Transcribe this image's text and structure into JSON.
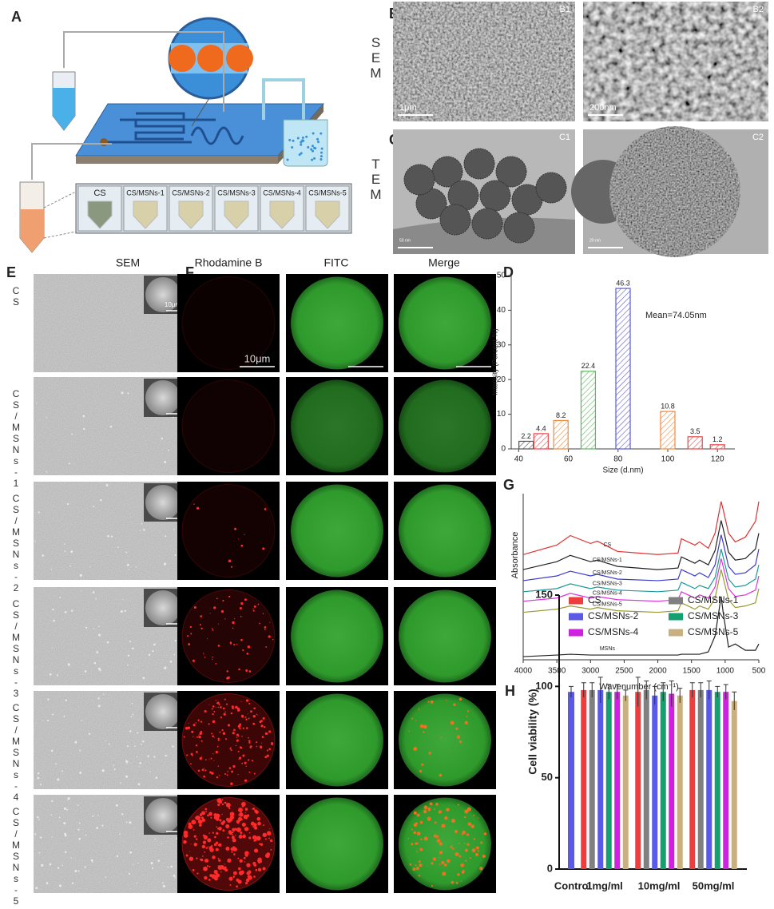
{
  "panel_labels": {
    "a": "A",
    "b": "B",
    "c": "C",
    "d": "D",
    "e": "E",
    "f": "F",
    "g": "G",
    "h": "H"
  },
  "panel_a": {
    "tubes": [
      "CS",
      "CS/MSNs-1",
      "CS/MSNs-2",
      "CS/MSNs-3",
      "CS/MSNs-4",
      "CS/MSNs-5"
    ]
  },
  "panel_b": {
    "side_label": "SEM",
    "images": [
      {
        "tag": "B1",
        "scale_bar": "1μm"
      },
      {
        "tag": "B2",
        "scale_bar": "200nm"
      }
    ]
  },
  "panel_c": {
    "side_label": "TEM",
    "images": [
      {
        "tag": "C1",
        "scale_bar": "50 nm"
      },
      {
        "tag": "C2",
        "scale_bar": "20 nm"
      }
    ]
  },
  "panel_e": {
    "header": "SEM",
    "scale_bar": "10μm",
    "rows": [
      "CS",
      "CS/MSNs-1",
      "CS/MSNs-2",
      "CS/MSNs-3",
      "CS/MSNs-4",
      "CS/MSNs-5"
    ]
  },
  "panel_f": {
    "headers": [
      "Rhodamine B",
      "FITC",
      "Merge"
    ],
    "scale_bar": "10μm"
  },
  "chart_data": [
    {
      "type": "bar",
      "x": [
        43,
        49,
        57,
        68,
        82,
        100,
        111,
        120
      ],
      "values": [
        2.2,
        4.4,
        8.2,
        22.4,
        46.3,
        10.8,
        3.5,
        1.2
      ],
      "colors": [
        "#555555",
        "#e8474c",
        "#f08a3c",
        "#5cb85c",
        "#5b5bd6",
        "#f08a3c",
        "#e8474c",
        "#e8474c"
      ],
      "xlim": [
        37,
        127
      ],
      "xticks": [
        40,
        60,
        80,
        100,
        120
      ],
      "ylim": [
        0,
        50
      ],
      "yticks": [
        0,
        10,
        20,
        30,
        40,
        50
      ],
      "xlabel": "Size (d.nm)",
      "ylabel": "Intensity (Percent %)",
      "annotation": "Mean=74.05nm"
    },
    {
      "type": "line",
      "x": [
        4000,
        3500,
        3300,
        3000,
        2900,
        2600,
        2000,
        1700,
        1650,
        1550,
        1450,
        1380,
        1250,
        1150,
        1060,
        1030,
        950,
        850,
        700,
        550,
        500
      ],
      "series": [
        {
          "name": "CS",
          "color": "#e03030",
          "values": [
            6.65,
            7.25,
            7.85,
            7.35,
            7.5,
            6.85,
            6.65,
            6.75,
            7.65,
            7.45,
            7.25,
            7.45,
            7.05,
            8.0,
            10.0,
            9.5,
            8.0,
            7.45,
            7.75,
            8.75,
            10.0
          ]
        },
        {
          "name": "CS/MSNs-1",
          "color": "#222222",
          "values": [
            5.7,
            6.2,
            6.6,
            6.2,
            6.3,
            5.9,
            5.7,
            5.8,
            6.5,
            6.3,
            6.1,
            6.3,
            6.0,
            6.9,
            8.8,
            8.3,
            6.8,
            6.3,
            6.4,
            7.0,
            8.0
          ]
        },
        {
          "name": "CS/MSNs-2",
          "color": "#3a3ad0",
          "values": [
            5.0,
            5.3,
            5.6,
            5.3,
            5.4,
            5.1,
            5.0,
            5.1,
            5.7,
            5.5,
            5.3,
            5.5,
            5.2,
            6.0,
            7.9,
            7.4,
            5.9,
            5.4,
            5.5,
            6.0,
            7.0
          ]
        },
        {
          "name": "CS/MSNs-3",
          "color": "#1a9a9a",
          "values": [
            4.3,
            4.5,
            4.8,
            4.5,
            4.6,
            4.4,
            4.3,
            4.4,
            4.9,
            4.7,
            4.5,
            4.7,
            4.5,
            5.2,
            7.0,
            6.5,
            5.1,
            4.6,
            4.7,
            5.1,
            6.0
          ]
        },
        {
          "name": "CS/MSNs-4",
          "color": "#e030e0",
          "values": [
            3.7,
            3.9,
            4.2,
            3.9,
            4.0,
            3.8,
            3.7,
            3.8,
            4.3,
            4.1,
            3.9,
            4.1,
            3.9,
            4.6,
            6.4,
            5.9,
            4.5,
            4.0,
            4.1,
            4.4,
            5.3
          ]
        },
        {
          "name": "CS/MSNs-5",
          "color": "#9a9a30",
          "values": [
            3.0,
            3.2,
            3.4,
            3.2,
            3.3,
            3.1,
            3.0,
            3.1,
            3.6,
            3.4,
            3.2,
            3.4,
            3.2,
            3.9,
            5.7,
            5.2,
            3.8,
            3.3,
            3.4,
            3.6,
            4.5
          ]
        },
        {
          "name": "MSNs",
          "color": "#222222",
          "values": [
            0.2,
            0.3,
            0.35,
            0.3,
            0.3,
            0.3,
            0.3,
            0.3,
            0.35,
            0.35,
            0.35,
            0.35,
            0.5,
            1.5,
            4.0,
            3.0,
            0.8,
            1.0,
            0.6,
            0.6,
            1.0
          ]
        }
      ],
      "xlim": [
        4000,
        500
      ],
      "xticks": [
        4000,
        3500,
        3000,
        2500,
        2000,
        1500,
        1000,
        500
      ],
      "ylim": [
        0,
        10.5
      ],
      "xlabel": "Wavenumber (cm⁻¹)",
      "ylabel": "Absorbance"
    },
    {
      "type": "bar",
      "categories": [
        "Control",
        "1mg/ml",
        "10mg/ml",
        "50mg/ml"
      ],
      "control": {
        "color": "#5a5ae6",
        "value": 97,
        "error": 3
      },
      "series": [
        {
          "name": "CS",
          "color": "#f03c3c",
          "values": [
            null,
            98,
            97,
            98
          ],
          "errors": [
            null,
            4,
            8,
            4
          ]
        },
        {
          "name": "CS/MSNs-1",
          "color": "#808080",
          "values": [
            null,
            98,
            98,
            98
          ],
          "errors": [
            null,
            4,
            5,
            4
          ]
        },
        {
          "name": "CS/MSNs-2",
          "color": "#5a5ae6",
          "values": [
            null,
            98,
            95,
            98
          ],
          "errors": [
            null,
            7,
            5,
            5
          ]
        },
        {
          "name": "CS/MSNs-3",
          "color": "#15a070",
          "values": [
            null,
            97,
            97,
            97
          ],
          "errors": [
            null,
            4,
            5,
            3
          ]
        },
        {
          "name": "CS/MSNs-4",
          "color": "#d020e0",
          "values": [
            null,
            97,
            96,
            97
          ],
          "errors": [
            null,
            4,
            7,
            4
          ]
        },
        {
          "name": "CS/MSNs-5",
          "color": "#c8b080",
          "values": [
            null,
            95,
            95,
            92
          ],
          "errors": [
            null,
            3,
            4,
            5
          ]
        }
      ],
      "ylim": [
        0,
        150
      ],
      "yticks": [
        0,
        50,
        100,
        150
      ],
      "ylabel": "Cell viability (%)"
    }
  ]
}
